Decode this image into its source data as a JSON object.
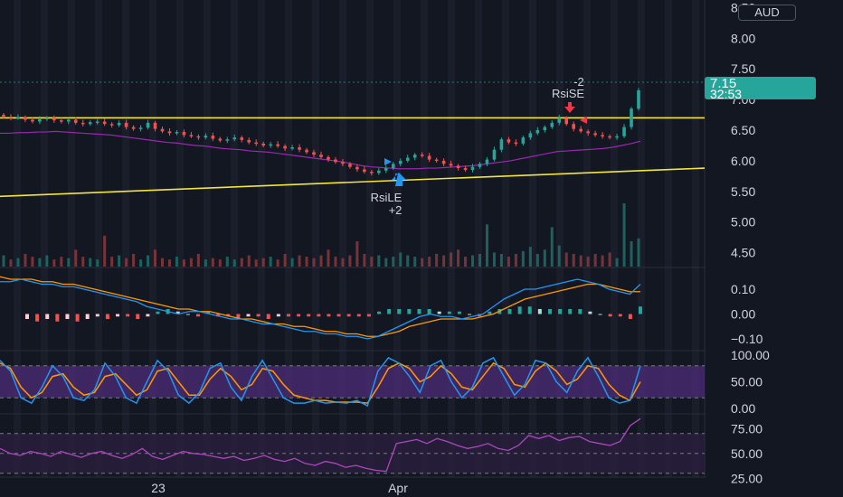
{
  "currency": "AUD",
  "last_price": "7.15",
  "countdown": "32:53",
  "colors": {
    "background": "#131722",
    "up": "#26a69a",
    "down": "#ef5350",
    "level_line": "#f4e53a",
    "ma_line": "#9c27b0",
    "macd_line": "#2196f3",
    "signal_line": "#ff9800",
    "rsi_line": "#ab47bc",
    "stoch_band": "#4a2a73"
  },
  "signals": [
    {
      "id": "short",
      "top": "-2",
      "bottom": "RsiSE",
      "color": "#f23645",
      "direction": "down"
    },
    {
      "id": "long",
      "top": "RsiLE",
      "bottom": "+2",
      "color": "#2196f3",
      "direction": "up"
    }
  ],
  "chart_data": [
    {
      "type": "candlestick",
      "x_ticks": [
        "23",
        "Apr"
      ],
      "y_ticks": [
        "8.50",
        "8.00",
        "7.50",
        "7.00",
        "6.50",
        "6.00",
        "5.50",
        "5.00",
        "4.50"
      ],
      "ylim": [
        4.2,
        8.55
      ],
      "last_price": 7.15,
      "closes": [
        6.72,
        6.7,
        6.71,
        6.67,
        6.64,
        6.68,
        6.7,
        6.66,
        6.64,
        6.67,
        6.62,
        6.6,
        6.63,
        6.64,
        6.6,
        6.58,
        6.62,
        6.55,
        6.52,
        6.54,
        6.62,
        6.52,
        6.48,
        6.45,
        6.47,
        6.42,
        6.4,
        6.38,
        6.41,
        6.36,
        6.33,
        6.35,
        6.38,
        6.34,
        6.3,
        6.28,
        6.25,
        6.27,
        6.24,
        6.2,
        6.22,
        6.18,
        6.14,
        6.1,
        6.06,
        6.02,
        5.98,
        5.95,
        5.9,
        5.86,
        5.82,
        5.8,
        5.84,
        5.88,
        5.95,
        6.0,
        6.05,
        6.1,
        6.08,
        6.02,
        6.0,
        5.95,
        5.92,
        5.88,
        5.85,
        5.9,
        5.95,
        6.02,
        6.18,
        6.35,
        6.3,
        6.28,
        6.38,
        6.45,
        6.5,
        6.55,
        6.62,
        6.7,
        6.6,
        6.52,
        6.48,
        6.45,
        6.42,
        6.4,
        6.38,
        6.4,
        6.55,
        6.85,
        7.15
      ],
      "moving_average": [
        6.45,
        6.45,
        6.46,
        6.46,
        6.47,
        6.47,
        6.48,
        6.47,
        6.46,
        6.45,
        6.44,
        6.43,
        6.42,
        6.4,
        6.38,
        6.36,
        6.34,
        6.32,
        6.3,
        6.29,
        6.27,
        6.25,
        6.24,
        6.22,
        6.2,
        6.19,
        6.18,
        6.16,
        6.15,
        6.14,
        6.12,
        6.1,
        6.08,
        6.06,
        6.04,
        6.02,
        6.0,
        5.98,
        5.95,
        5.92,
        5.9,
        5.89,
        5.88,
        5.87,
        5.87,
        5.87,
        5.88,
        5.88,
        5.89,
        5.9,
        5.91,
        5.92,
        5.94,
        5.96,
        5.98,
        6.0,
        6.03,
        6.06,
        6.09,
        6.12,
        6.15,
        6.16,
        6.17,
        6.18,
        6.19,
        6.2,
        6.22,
        6.25,
        6.28,
        6.32
      ],
      "levels": [
        {
          "name": "resistance",
          "y1": 6.7,
          "y2": 6.7
        },
        {
          "name": "support-trend",
          "y1": 5.42,
          "y2": 5.88
        }
      ]
    },
    {
      "type": "bar",
      "name": "volume",
      "values": [
        8,
        5,
        6,
        9,
        7,
        6,
        8,
        5,
        7,
        6,
        12,
        7,
        6,
        5,
        22,
        7,
        8,
        6,
        9,
        5,
        8,
        12,
        6,
        5,
        7,
        5,
        6,
        9,
        5,
        6,
        5,
        7,
        5,
        6,
        8,
        5,
        6,
        7,
        5,
        9,
        6,
        8,
        7,
        6,
        8,
        12,
        7,
        6,
        8,
        18,
        9,
        7,
        8,
        6,
        7,
        10,
        8,
        7,
        6,
        7,
        9,
        8,
        10,
        12,
        7,
        8,
        9,
        30,
        10,
        9,
        7,
        9,
        11,
        14,
        9,
        12,
        28,
        15,
        10,
        9,
        8,
        7,
        9,
        8,
        10,
        6,
        45,
        18,
        20
      ]
    },
    {
      "type": "line",
      "name": "macd",
      "y_ticks": [
        "0.10",
        "0.00",
        "−0.10"
      ],
      "ylim": [
        -0.14,
        0.18
      ],
      "macd": [
        0.13,
        0.13,
        0.14,
        0.13,
        0.12,
        0.12,
        0.11,
        0.11,
        0.1,
        0.09,
        0.08,
        0.07,
        0.06,
        0.05,
        0.03,
        0.02,
        0.01,
        0.0,
        0.01,
        0.01,
        0.0,
        -0.01,
        -0.02,
        -0.02,
        -0.03,
        -0.04,
        -0.04,
        -0.05,
        -0.06,
        -0.07,
        -0.07,
        -0.08,
        -0.08,
        -0.09,
        -0.09,
        -0.1,
        -0.09,
        -0.07,
        -0.05,
        -0.03,
        -0.01,
        0.0,
        -0.01,
        -0.01,
        -0.02,
        -0.01,
        0.0,
        0.03,
        0.06,
        0.08,
        0.1,
        0.1,
        0.11,
        0.12,
        0.13,
        0.14,
        0.13,
        0.12,
        0.1,
        0.09,
        0.08,
        0.12
      ],
      "signal": [
        0.15,
        0.14,
        0.14,
        0.14,
        0.13,
        0.13,
        0.12,
        0.12,
        0.11,
        0.1,
        0.09,
        0.08,
        0.07,
        0.06,
        0.05,
        0.04,
        0.03,
        0.02,
        0.02,
        0.01,
        0.01,
        0.0,
        -0.01,
        -0.02,
        -0.02,
        -0.03,
        -0.04,
        -0.04,
        -0.05,
        -0.05,
        -0.06,
        -0.07,
        -0.07,
        -0.08,
        -0.08,
        -0.09,
        -0.09,
        -0.08,
        -0.07,
        -0.05,
        -0.04,
        -0.03,
        -0.02,
        -0.02,
        -0.02,
        -0.02,
        -0.01,
        0.0,
        0.02,
        0.04,
        0.06,
        0.07,
        0.08,
        0.09,
        0.1,
        0.11,
        0.12,
        0.12,
        0.11,
        0.1,
        0.09,
        0.09
      ],
      "histogram": [
        -0.02,
        -0.03,
        -0.02,
        -0.03,
        -0.02,
        -0.03,
        -0.02,
        -0.01,
        -0.02,
        -0.01,
        -0.01,
        -0.02,
        -0.01,
        0.01,
        0.02,
        0.01,
        0.0,
        -0.01,
        0.01,
        -0.01,
        -0.01,
        -0.02,
        -0.01,
        -0.01,
        -0.02,
        -0.01,
        -0.01,
        -0.01,
        -0.01,
        -0.01,
        -0.01,
        -0.01,
        -0.01,
        -0.01,
        -0.01,
        0.01,
        0.02,
        0.02,
        0.02,
        0.02,
        0.02,
        0.01,
        0.01,
        0.01,
        0.0,
        -0.01,
        0.01,
        0.02,
        0.02,
        0.03,
        0.03,
        0.02,
        0.02,
        0.02,
        0.02,
        0.02,
        0.01,
        0.0,
        -0.01,
        -0.01,
        -0.02,
        0.03
      ]
    },
    {
      "type": "line",
      "name": "stochastic",
      "y_ticks": [
        "100.00",
        "50.00",
        "0.00"
      ],
      "ylim": [
        -5,
        105
      ],
      "k": [
        90,
        70,
        20,
        10,
        40,
        80,
        60,
        20,
        15,
        35,
        85,
        60,
        20,
        10,
        50,
        90,
        70,
        25,
        10,
        30,
        75,
        85,
        40,
        15,
        60,
        90,
        55,
        20,
        10,
        10,
        15,
        10,
        12,
        10,
        15,
        5,
        70,
        95,
        85,
        60,
        30,
        80,
        90,
        50,
        20,
        40,
        85,
        95,
        60,
        25,
        45,
        90,
        85,
        50,
        30,
        70,
        95,
        60,
        20,
        10,
        15,
        80
      ],
      "d": [
        85,
        75,
        40,
        20,
        30,
        60,
        65,
        40,
        25,
        30,
        60,
        65,
        45,
        25,
        35,
        70,
        75,
        50,
        25,
        25,
        55,
        75,
        60,
        35,
        45,
        75,
        70,
        45,
        25,
        20,
        15,
        15,
        12,
        12,
        12,
        10,
        40,
        75,
        85,
        75,
        50,
        60,
        80,
        65,
        40,
        35,
        60,
        85,
        75,
        45,
        40,
        70,
        85,
        70,
        45,
        55,
        80,
        75,
        45,
        25,
        15,
        50
      ]
    },
    {
      "type": "line",
      "name": "rsi",
      "y_ticks": [
        "75.00",
        "50.00",
        "25.00"
      ],
      "ylim": [
        28,
        88
      ],
      "values": [
        55,
        50,
        48,
        52,
        50,
        47,
        52,
        49,
        46,
        50,
        52,
        48,
        45,
        49,
        55,
        47,
        44,
        48,
        52,
        50,
        49,
        47,
        45,
        47,
        43,
        45,
        48,
        44,
        42,
        45,
        40,
        38,
        42,
        40,
        36,
        38,
        35,
        33,
        32,
        60,
        62,
        64,
        60,
        65,
        62,
        58,
        55,
        57,
        60,
        55,
        53,
        58,
        68,
        65,
        68,
        63,
        66,
        67,
        62,
        60,
        58,
        62,
        78,
        85
      ]
    }
  ]
}
